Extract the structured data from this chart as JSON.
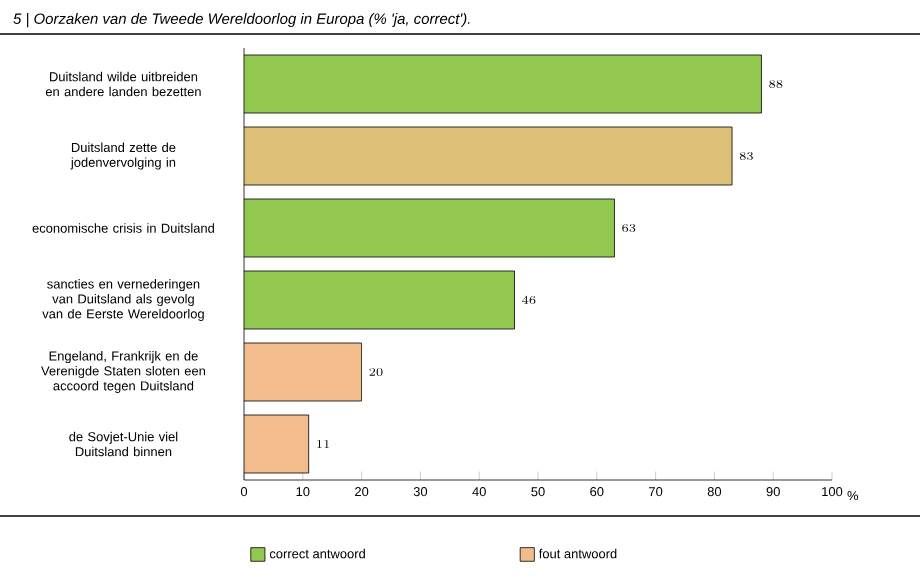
{
  "chart_data": {
    "type": "bar",
    "orientation": "horizontal",
    "title": "5 | Oorzaken van de Tweede Wereldoorlog in Europa (% 'ja, correct').",
    "xlabel": "%",
    "categories": [
      "Duitsland wilde uitbreiden en andere landen bezetten",
      "Duitsland zette de jodenvervolging in",
      "economische crisis in Duitsland",
      "sancties en vernederingen van Duitsland als gevolg van de Eerste Wereldoorlog",
      "Engeland, Frankrijk en de Verenigde Staten sloten een accoord tegen Duitsland",
      "de Sovjet-Unie viel Duitsland binnen"
    ],
    "series": [
      {
        "name": "correct antwoord",
        "color": "#92c850",
        "values": [
          88,
          null,
          63,
          46,
          null,
          null
        ]
      },
      {
        "name": "fout antwoord",
        "color": "#f2bc8c",
        "colors": [
          null,
          "#dcc078",
          null,
          null,
          "#f2bc8c",
          "#f2bc8c"
        ],
        "values": [
          null,
          83,
          null,
          null,
          20,
          11
        ]
      }
    ],
    "xlim": [
      0,
      100
    ],
    "xticks": [
      0,
      10,
      20,
      30,
      40,
      50,
      60,
      70,
      80,
      90,
      100
    ],
    "data_labels": true,
    "legend": "bottom",
    "grid": false
  }
}
